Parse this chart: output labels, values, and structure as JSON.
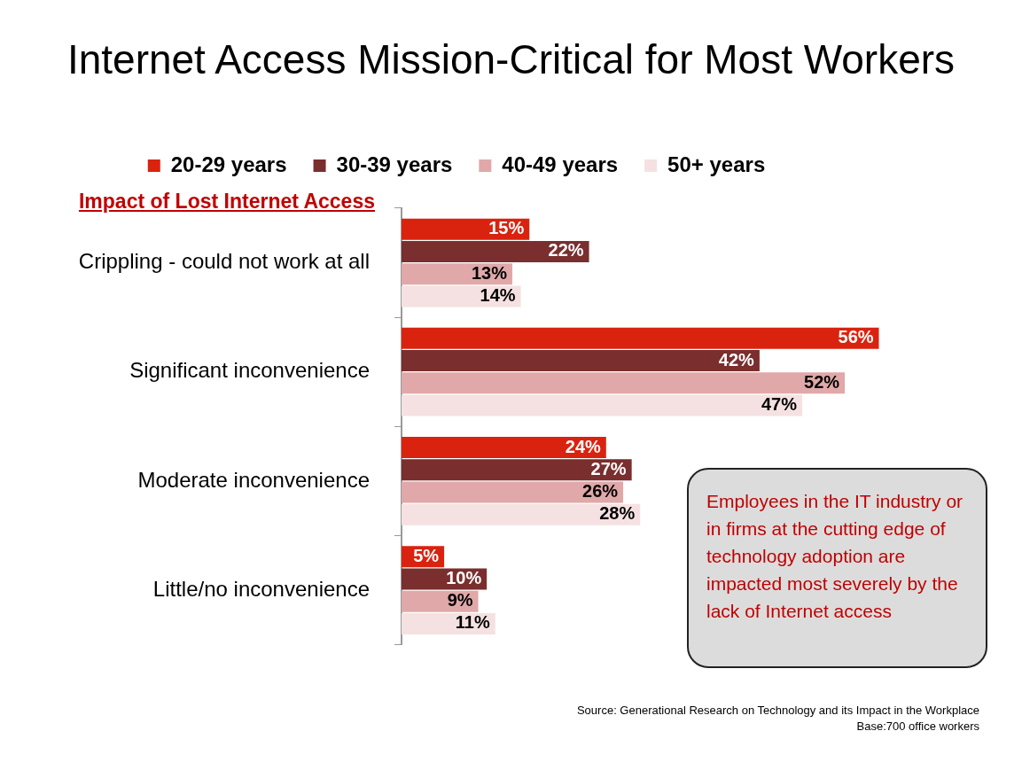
{
  "chart_data": {
    "type": "bar",
    "orientation": "horizontal",
    "title": "Internet Access Mission-Critical for Most Workers",
    "ylabel": "Impact of Lost Internet Access",
    "categories": [
      "Crippling - could not work at all",
      "Significant inconvenience",
      "Moderate inconvenience",
      "Little/no inconvenience"
    ],
    "series": [
      {
        "name": "20-29 years",
        "color": "#d9230f",
        "values": [
          15,
          56,
          24,
          5
        ],
        "value_labels": [
          "15%",
          "56%",
          "24%",
          "5%"
        ]
      },
      {
        "name": "30-39 years",
        "color": "#7a2e2e",
        "values": [
          22,
          42,
          27,
          10
        ],
        "value_labels": [
          "22%",
          "42%",
          "27%",
          "10%"
        ]
      },
      {
        "name": "40-49 years",
        "color": "#e0a8a8",
        "values": [
          13,
          52,
          26,
          9
        ],
        "value_labels": [
          "13%",
          "52%",
          "26%",
          "9%"
        ]
      },
      {
        "name": "50+ years",
        "color": "#f5e1e1",
        "values": [
          14,
          47,
          28,
          11
        ],
        "value_labels": [
          "14%",
          "47%",
          "28%",
          "11%"
        ]
      }
    ],
    "legend": "top",
    "grid": false,
    "annotations": [
      "Employees in the IT industry or in firms at the cutting edge of technology adoption are impacted most severely by the lack of Internet access",
      "Source: Generational Research on Technology and its Impact in the Workplace",
      "Base:700 office workers"
    ]
  }
}
